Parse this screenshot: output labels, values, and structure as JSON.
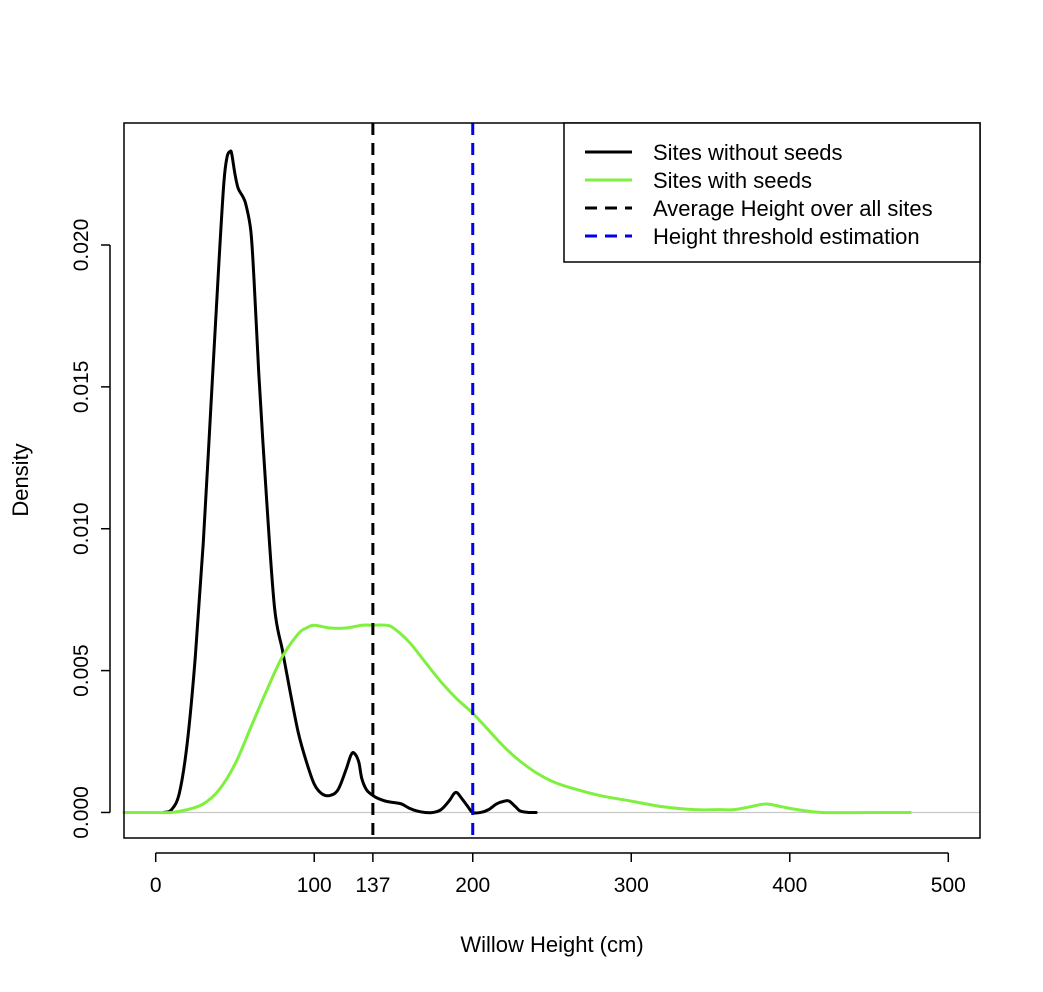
{
  "chart_data": {
    "type": "line",
    "title": "",
    "xlabel": "Willow Height (cm)",
    "ylabel": "Density",
    "xlim": [
      -20,
      520
    ],
    "ylim": [
      -0.0009,
      0.0243
    ],
    "x_ticks": [
      0,
      100,
      137,
      200,
      300,
      400,
      500
    ],
    "x_tick_labels": [
      "0",
      "100",
      "137",
      "200",
      "300",
      "400",
      "500"
    ],
    "y_ticks": [
      0.0,
      0.005,
      0.01,
      0.015,
      0.02
    ],
    "y_tick_labels": [
      "0.000",
      "0.005",
      "0.010",
      "0.015",
      "0.020"
    ],
    "grid": false,
    "zero_line": true,
    "legend": {
      "position": "top-right",
      "entries": [
        {
          "label": "Sites without seeds",
          "color": "#000000",
          "style": "solid"
        },
        {
          "label": "Sites with seeds",
          "color": "#80f040",
          "style": "solid"
        },
        {
          "label": "Average Height over all sites",
          "color": "#000000",
          "style": "dashed"
        },
        {
          "label": "Height threshold estimation",
          "color": "#0000ee",
          "style": "dashed"
        }
      ]
    },
    "series": [
      {
        "name": "Sites without seeds",
        "color": "#000000",
        "style": "solid",
        "x": [
          5,
          10,
          15,
          20,
          25,
          30,
          35,
          40,
          43,
          45,
          47,
          48,
          50,
          52,
          55,
          57,
          60,
          62,
          65,
          70,
          75,
          80,
          85,
          90,
          95,
          100,
          105,
          110,
          115,
          120,
          123,
          125,
          128,
          130,
          133,
          137,
          140,
          145,
          150,
          155,
          160,
          165,
          170,
          175,
          180,
          185,
          188,
          190,
          193,
          197,
          200,
          205,
          210,
          215,
          220,
          223,
          227,
          230,
          235,
          240
        ],
        "y": [
          0.0,
          0.0001,
          0.0007,
          0.0025,
          0.0055,
          0.0095,
          0.0145,
          0.0195,
          0.0222,
          0.0231,
          0.0233,
          0.0232,
          0.0225,
          0.022,
          0.0217,
          0.0214,
          0.0205,
          0.0188,
          0.0155,
          0.011,
          0.0072,
          0.0057,
          0.0042,
          0.0028,
          0.0018,
          0.001,
          0.00065,
          0.0006,
          0.0008,
          0.0015,
          0.002,
          0.0021,
          0.0018,
          0.0012,
          0.0008,
          0.0006,
          0.0005,
          0.0004,
          0.00035,
          0.0003,
          0.00015,
          5e-05,
          0.0,
          0.0,
          0.0001,
          0.0004,
          0.00065,
          0.0007,
          0.0005,
          0.0002,
          0.0,
          0.0,
          0.0001,
          0.0003,
          0.0004,
          0.0004,
          0.0002,
          5e-05,
          0.0,
          0.0
        ]
      },
      {
        "name": "Sites with seeds",
        "color": "#80f040",
        "style": "solid",
        "x": [
          -20,
          0,
          10,
          20,
          30,
          40,
          50,
          60,
          70,
          80,
          90,
          95,
          100,
          110,
          120,
          130,
          137,
          145,
          150,
          160,
          170,
          180,
          190,
          200,
          210,
          220,
          230,
          240,
          250,
          260,
          280,
          300,
          320,
          340,
          355,
          365,
          375,
          385,
          395,
          405,
          420,
          450,
          476
        ],
        "y": [
          0.0,
          0.0,
          0.0,
          0.0001,
          0.0003,
          0.0008,
          0.0017,
          0.003,
          0.0043,
          0.0055,
          0.0063,
          0.0065,
          0.0066,
          0.0065,
          0.0065,
          0.0066,
          0.0066,
          0.0066,
          0.0065,
          0.006,
          0.0053,
          0.0046,
          0.004,
          0.0035,
          0.0029,
          0.0023,
          0.0018,
          0.0014,
          0.0011,
          0.0009,
          0.0006,
          0.0004,
          0.0002,
          0.0001,
          0.0001,
          0.0001,
          0.0002,
          0.0003,
          0.0002,
          0.0001,
          0.0,
          0.0,
          0.0
        ]
      }
    ],
    "vlines": [
      {
        "name": "Average Height over all sites",
        "x": 137,
        "color": "#000000",
        "style": "dashed"
      },
      {
        "name": "Height threshold estimation",
        "x": 200,
        "color": "#0000ee",
        "style": "dashed"
      }
    ]
  }
}
